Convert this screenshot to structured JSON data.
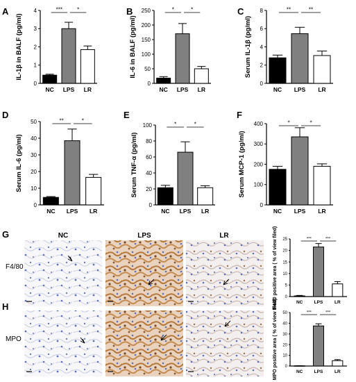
{
  "colors": {
    "NC": "#000000",
    "LPS": "#808080",
    "LR": "#ffffff",
    "axis": "#000000",
    "tissue_bg": "#f4f4f6",
    "nuclei": "#5b6fb8",
    "stain": "#b5783a"
  },
  "image_panels": {
    "column_labels": [
      "NC",
      "LPS",
      "LR"
    ],
    "row_labels": [
      "F4/80",
      "MPO"
    ]
  },
  "chart_data": [
    {
      "panel": "A",
      "type": "bar",
      "categories": [
        "NC",
        "LPS",
        "LR"
      ],
      "values": [
        0.45,
        3.0,
        1.85
      ],
      "errors": [
        0.05,
        0.35,
        0.2
      ],
      "ylabel": "IL-1β in BALF (pg/ml)",
      "ylim": [
        0,
        4
      ],
      "yticks": [
        0,
        1,
        2,
        3,
        4
      ],
      "significance": [
        {
          "from": 0,
          "to": 1,
          "label": "***"
        },
        {
          "from": 1,
          "to": 2,
          "label": "*"
        }
      ]
    },
    {
      "panel": "B",
      "type": "bar",
      "categories": [
        "NC",
        "LPS",
        "LR"
      ],
      "values": [
        18,
        170,
        50
      ],
      "errors": [
        5,
        35,
        8
      ],
      "ylabel": "IL-6 in BALF (pg/ml)",
      "ylim": [
        0,
        250
      ],
      "yticks": [
        0,
        50,
        100,
        150,
        200,
        250
      ],
      "significance": [
        {
          "from": 0,
          "to": 1,
          "label": "*"
        },
        {
          "from": 1,
          "to": 2,
          "label": "*"
        }
      ]
    },
    {
      "panel": "C",
      "type": "bar",
      "categories": [
        "NC",
        "LPS",
        "LR"
      ],
      "values": [
        2.8,
        5.45,
        3.05
      ],
      "errors": [
        0.3,
        0.7,
        0.5
      ],
      "ylabel": "Serum IL-1β (pg/ml)",
      "ylim": [
        0,
        8
      ],
      "yticks": [
        0,
        2,
        4,
        6,
        8
      ],
      "significance": [
        {
          "from": 0,
          "to": 1,
          "label": "**"
        },
        {
          "from": 1,
          "to": 2,
          "label": "**"
        }
      ]
    },
    {
      "panel": "D",
      "type": "bar",
      "categories": [
        "NC",
        "LPS",
        "LR"
      ],
      "values": [
        4.5,
        38.5,
        16.5
      ],
      "errors": [
        0.5,
        7,
        1.8
      ],
      "ylabel": "Serum IL-6 (pg/ml)",
      "ylim": [
        0,
        50
      ],
      "yticks": [
        0,
        10,
        20,
        30,
        40,
        50
      ],
      "significance": [
        {
          "from": 0,
          "to": 1,
          "label": "**"
        },
        {
          "from": 1,
          "to": 2,
          "label": "*"
        }
      ]
    },
    {
      "panel": "E",
      "type": "bar",
      "categories": [
        "NC",
        "LPS",
        "LR"
      ],
      "values": [
        21.5,
        66,
        21.5
      ],
      "errors": [
        3,
        13,
        2.5
      ],
      "ylabel": "Serum TNF-α (pg/ml)",
      "ylim": [
        0,
        100
      ],
      "yticks": [
        0,
        20,
        40,
        60,
        80,
        100
      ],
      "significance": [
        {
          "from": 0,
          "to": 1,
          "label": "*"
        },
        {
          "from": 1,
          "to": 2,
          "label": "*"
        }
      ]
    },
    {
      "panel": "F",
      "type": "bar",
      "categories": [
        "NC",
        "LPS",
        "LR"
      ],
      "values": [
        175,
        335,
        190
      ],
      "errors": [
        15,
        45,
        12
      ],
      "ylabel": "Serum MCP-1 (pg/ml)",
      "ylim": [
        0,
        400
      ],
      "yticks": [
        0,
        100,
        200,
        300,
        400
      ],
      "significance": [
        {
          "from": 0,
          "to": 1,
          "label": "*"
        },
        {
          "from": 1,
          "to": 2,
          "label": "*"
        }
      ]
    },
    {
      "panel": "G",
      "type": "bar",
      "categories": [
        "NC",
        "LPS",
        "LR"
      ],
      "values": [
        0.3,
        21.5,
        5.5
      ],
      "errors": [
        0.2,
        1.5,
        1
      ],
      "ylabel": "F4/80 positive area ( % of view filed)",
      "ylim": [
        0,
        25
      ],
      "yticks": [
        0,
        5,
        10,
        15,
        20,
        25
      ],
      "significance": [
        {
          "from": 0,
          "to": 1,
          "label": "***"
        },
        {
          "from": 1,
          "to": 2,
          "label": "***"
        }
      ]
    },
    {
      "panel": "H",
      "type": "bar",
      "categories": [
        "NC",
        "LPS",
        "LR"
      ],
      "values": [
        0.2,
        37.5,
        5
      ],
      "errors": [
        0.1,
        2,
        1
      ],
      "ylabel": "MPO positive area ( % of view filed)",
      "ylim": [
        0,
        50
      ],
      "yticks": [
        0,
        10,
        20,
        30,
        40,
        50
      ],
      "significance": [
        {
          "from": 0,
          "to": 1,
          "label": "***"
        },
        {
          "from": 1,
          "to": 2,
          "label": "***"
        }
      ]
    }
  ]
}
